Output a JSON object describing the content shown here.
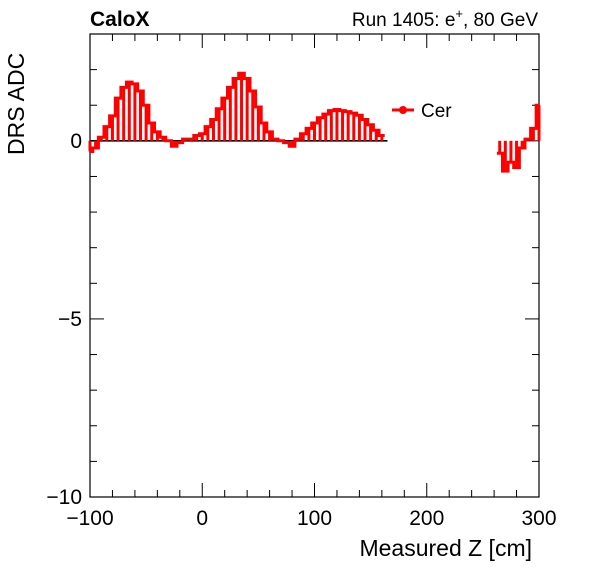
{
  "header": {
    "experiment": "CaloX",
    "run_prefix": "Run 1405: e",
    "run_sup": "+",
    "run_suffix": ", 80 GeV"
  },
  "chart_data": {
    "type": "line",
    "title": "",
    "xlabel": "Measured Z [cm]",
    "ylabel": "DRS ADC",
    "xlim": [
      -100,
      300
    ],
    "ylim": [
      -10,
      3
    ],
    "x_ticks": [
      -100,
      0,
      100,
      200,
      300
    ],
    "x_tick_labels": [
      "−100",
      "0",
      "100",
      "200",
      "300"
    ],
    "y_ticks": [
      -10,
      -5,
      0
    ],
    "y_tick_labels": [
      "−10",
      "−5",
      "0"
    ],
    "baseline": 0,
    "grid": false,
    "legend_position": "top-right",
    "style": "histogram-step-with-drop-lines",
    "color": "#ff0000",
    "series": [
      {
        "name": "Cer",
        "segments": [
          [
            {
              "x": -100,
              "y": -0.3
            },
            {
              "x": -95,
              "y": -0.2
            },
            {
              "x": -90,
              "y": 0.1
            },
            {
              "x": -85,
              "y": 0.4
            },
            {
              "x": -80,
              "y": 0.7
            },
            {
              "x": -75,
              "y": 1.2
            },
            {
              "x": -70,
              "y": 1.5
            },
            {
              "x": -65,
              "y": 1.65
            },
            {
              "x": -60,
              "y": 1.6
            },
            {
              "x": -55,
              "y": 1.4
            },
            {
              "x": -50,
              "y": 1.0
            },
            {
              "x": -45,
              "y": 0.5
            },
            {
              "x": -40,
              "y": 0.25
            },
            {
              "x": -35,
              "y": 0.1
            },
            {
              "x": -30,
              "y": 0.0
            },
            {
              "x": -25,
              "y": -0.15
            },
            {
              "x": -20,
              "y": -0.05
            },
            {
              "x": -15,
              "y": 0.05
            },
            {
              "x": -10,
              "y": 0.05
            },
            {
              "x": -5,
              "y": 0.15
            },
            {
              "x": 0,
              "y": 0.2
            },
            {
              "x": 5,
              "y": 0.4
            },
            {
              "x": 10,
              "y": 0.6
            },
            {
              "x": 15,
              "y": 0.9
            },
            {
              "x": 20,
              "y": 1.2
            },
            {
              "x": 25,
              "y": 1.5
            },
            {
              "x": 30,
              "y": 1.75
            },
            {
              "x": 35,
              "y": 1.9
            },
            {
              "x": 40,
              "y": 1.75
            },
            {
              "x": 45,
              "y": 1.4
            },
            {
              "x": 50,
              "y": 0.95
            },
            {
              "x": 55,
              "y": 0.5
            },
            {
              "x": 60,
              "y": 0.25
            },
            {
              "x": 65,
              "y": 0.05
            },
            {
              "x": 70,
              "y": 0.0
            },
            {
              "x": 75,
              "y": -0.05
            },
            {
              "x": 80,
              "y": -0.15
            },
            {
              "x": 85,
              "y": 0.05
            },
            {
              "x": 90,
              "y": 0.2
            },
            {
              "x": 95,
              "y": 0.35
            },
            {
              "x": 100,
              "y": 0.5
            },
            {
              "x": 105,
              "y": 0.65
            },
            {
              "x": 110,
              "y": 0.75
            },
            {
              "x": 115,
              "y": 0.85
            },
            {
              "x": 120,
              "y": 0.88
            },
            {
              "x": 125,
              "y": 0.85
            },
            {
              "x": 130,
              "y": 0.82
            },
            {
              "x": 135,
              "y": 0.78
            },
            {
              "x": 140,
              "y": 0.72
            },
            {
              "x": 145,
              "y": 0.6
            },
            {
              "x": 150,
              "y": 0.45
            },
            {
              "x": 155,
              "y": 0.3
            },
            {
              "x": 160,
              "y": 0.15
            }
          ],
          [
            {
              "x": 265,
              "y": -0.35
            },
            {
              "x": 270,
              "y": -0.85
            },
            {
              "x": 275,
              "y": -0.6
            },
            {
              "x": 280,
              "y": -0.75
            },
            {
              "x": 285,
              "y": -0.2
            },
            {
              "x": 290,
              "y": 0.05
            },
            {
              "x": 295,
              "y": 0.35
            },
            {
              "x": 300,
              "y": 1.0
            }
          ]
        ]
      }
    ]
  }
}
